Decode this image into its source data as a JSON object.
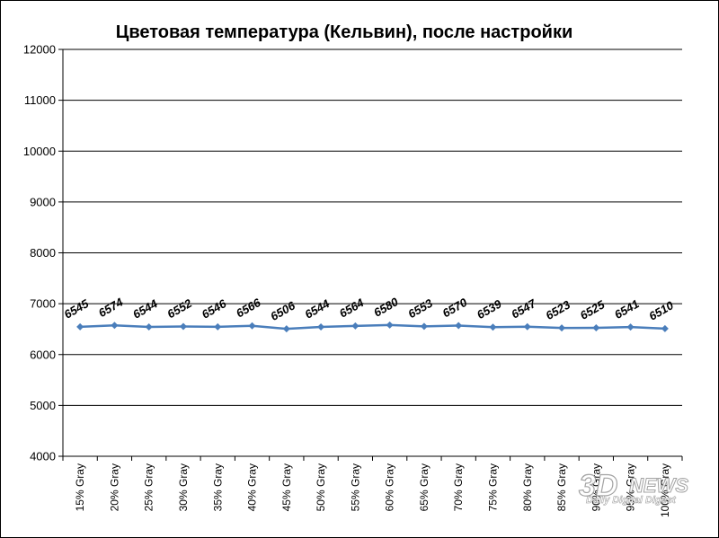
{
  "chart_data": {
    "type": "line",
    "title": "Цветовая температура (Кельвин), после настройки",
    "xlabel": "",
    "ylabel": "",
    "ylim": [
      4000,
      12000
    ],
    "yticks": [
      4000,
      5000,
      6000,
      7000,
      8000,
      9000,
      10000,
      11000,
      12000
    ],
    "grid": true,
    "legend": "none",
    "categories": [
      "15% Gray",
      "20% Gray",
      "25% Gray",
      "30% Gray",
      "35% Gray",
      "40% Gray",
      "45% Gray",
      "50% Gray",
      "55% Gray",
      "60% Gray",
      "65% Gray",
      "70% Gray",
      "75% Gray",
      "80% Gray",
      "85% Gray",
      "90% Gray",
      "95% Gray",
      "100% Gray"
    ],
    "series": [
      {
        "values": [
          6545,
          6574,
          6544,
          6552,
          6546,
          6566,
          6506,
          6544,
          6564,
          6580,
          6553,
          6570,
          6539,
          6547,
          6523,
          6525,
          6541,
          6510
        ],
        "color": "#4a7ebb"
      }
    ],
    "data_labels": [
      "6545",
      "6574",
      "6544",
      "6552",
      "6546",
      "6566",
      "6506",
      "6544",
      "6564",
      "6580",
      "6553",
      "6570",
      "6539",
      "6547",
      "6523",
      "6525",
      "6541",
      "6510"
    ]
  },
  "watermark": {
    "logo": "3DNEWS",
    "tagline": "Daily Digital Digest"
  }
}
